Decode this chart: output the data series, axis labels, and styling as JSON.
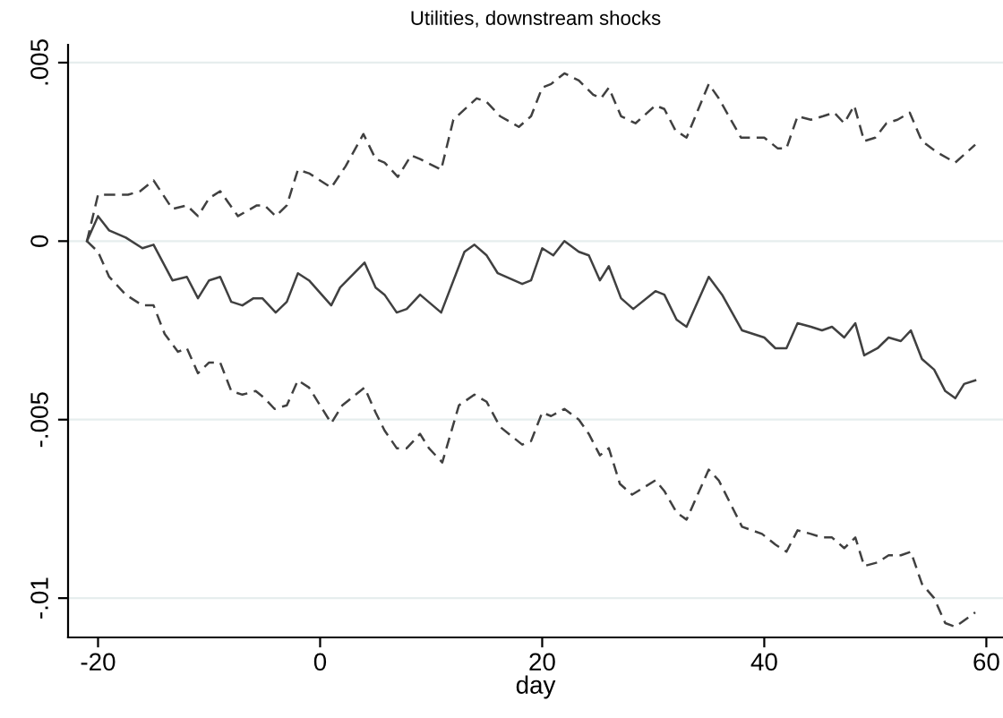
{
  "chart_data": {
    "type": "line",
    "title": "Utilities, downstream shocks",
    "xlabel": "day",
    "xlim": [
      -22.7,
      61.5
    ],
    "ylim": [
      -0.0111,
      0.0055
    ],
    "xticks": [
      -20,
      0,
      20,
      40,
      60
    ],
    "yticks": [
      {
        "value": 0.005,
        "label": ".005"
      },
      0,
      {
        "value": -0.005,
        "label": "-.005"
      },
      {
        "value": -0.01,
        "label": "-.01"
      }
    ],
    "grid": "y",
    "legend": false,
    "marker": "none",
    "series": [
      {
        "color": "#404040",
        "line_style": "dashed",
        "x": [
          -21,
          -20,
          -19,
          -17.3,
          -16.2,
          -15,
          -13.3,
          -12,
          -11,
          -10,
          -9,
          -7.4,
          -5.7,
          -5,
          -4,
          -3,
          -2,
          -1,
          1,
          2.3,
          3.9,
          5,
          5.8,
          7,
          8.2,
          9,
          10.9,
          12,
          14.1,
          15,
          16.2,
          17.9,
          19,
          20,
          20.8,
          22,
          23.3,
          24.6,
          25.3,
          26,
          27.1,
          28.4,
          30.2,
          31,
          32,
          33,
          35,
          35.9,
          37.9,
          40,
          41.2,
          42,
          43,
          44.2,
          45.3,
          46.3,
          47.2,
          48.1,
          49,
          50,
          51,
          52,
          53.1,
          54.2,
          55.5,
          57.2,
          59
        ],
        "values": [
          0,
          0.0013,
          0.0013,
          0.0013,
          0.0014,
          0.0017,
          0.0009,
          0.001,
          0.0007,
          0.0012,
          0.0014,
          0.0007,
          0.001,
          0.001,
          0.0007,
          0.001,
          0.002,
          0.0019,
          0.0015,
          0.0021,
          0.003,
          0.0023,
          0.0022,
          0.0018,
          0.0024,
          0.0023,
          0.002,
          0.0034,
          0.004,
          0.0039,
          0.0035,
          0.0032,
          0.0035,
          0.0043,
          0.0044,
          0.0047,
          0.0045,
          0.0041,
          0.004,
          0.0043,
          0.0035,
          0.0033,
          0.0038,
          0.0037,
          0.0031,
          0.0029,
          0.0044,
          0.004,
          0.0029,
          0.0029,
          0.0026,
          0.0026,
          0.0035,
          0.0034,
          0.0035,
          0.0036,
          0.0033,
          0.0038,
          0.0028,
          0.0029,
          0.0033,
          0.0034,
          0.0036,
          0.0028,
          0.0025,
          0.0022,
          0.0027
        ]
      },
      {
        "color": "#404040",
        "line_style": "solid",
        "x": [
          -21,
          -20,
          -19,
          -17.5,
          -16,
          -15,
          -13.3,
          -12,
          -11,
          -10,
          -9,
          -8,
          -7,
          -6,
          -5.2,
          -4,
          -3,
          -2,
          -1,
          1,
          1.8,
          4,
          5,
          5.8,
          6.9,
          7.8,
          9,
          10.9,
          13,
          13.9,
          15,
          16,
          18.2,
          19,
          20,
          21,
          22,
          23.3,
          24.2,
          25.2,
          26,
          27.1,
          28.2,
          30.2,
          31,
          32.1,
          33,
          35,
          36.2,
          38,
          40,
          41,
          42,
          43,
          44.2,
          45.2,
          46.1,
          47.2,
          48.2,
          49,
          50.2,
          51.2,
          52.3,
          53.2,
          54.2,
          55.3,
          56.3,
          57.2,
          58,
          59
        ],
        "values": [
          0,
          0.0007,
          0.0003,
          0.0001,
          -0.0002,
          -0.0001,
          -0.0011,
          -0.001,
          -0.0016,
          -0.0011,
          -0.001,
          -0.0017,
          -0.0018,
          -0.0016,
          -0.0016,
          -0.002,
          -0.0017,
          -0.0009,
          -0.0011,
          -0.0018,
          -0.0013,
          -0.0006,
          -0.0013,
          -0.0015,
          -0.002,
          -0.0019,
          -0.0015,
          -0.002,
          -0.0003,
          -0.0001,
          -0.0004,
          -0.0009,
          -0.0012,
          -0.0011,
          -0.0002,
          -0.0004,
          0,
          -0.0003,
          -0.0004,
          -0.0011,
          -0.0007,
          -0.0016,
          -0.0019,
          -0.0014,
          -0.0015,
          -0.0022,
          -0.0024,
          -0.001,
          -0.0015,
          -0.0025,
          -0.0027,
          -0.003,
          -0.003,
          -0.0023,
          -0.0024,
          -0.0025,
          -0.0024,
          -0.0027,
          -0.0023,
          -0.0032,
          -0.003,
          -0.0027,
          -0.0028,
          -0.0025,
          -0.0033,
          -0.0036,
          -0.0042,
          -0.0044,
          -0.004,
          -0.0039
        ]
      },
      {
        "color": "#404040",
        "line_style": "dashed",
        "x": [
          -21,
          -20,
          -19,
          -17.5,
          -16,
          -15,
          -14,
          -12.8,
          -12,
          -11,
          -10,
          -9,
          -8,
          -7,
          -5.8,
          -5,
          -4.1,
          -3,
          -2,
          -1,
          1,
          2,
          4,
          5,
          5.8,
          6.9,
          7.8,
          9,
          9.8,
          11,
          12.5,
          13.9,
          15,
          16.2,
          18.2,
          19,
          20,
          20.8,
          22,
          23.3,
          24.2,
          25.2,
          26,
          27,
          28.1,
          30.2,
          31,
          32.1,
          33,
          35,
          35.9,
          38,
          39.8,
          41,
          42,
          43,
          44.2,
          45.2,
          46.1,
          47.2,
          48.2,
          49,
          50.2,
          51.2,
          52.3,
          53.2,
          54.2,
          55.3,
          56.3,
          57.2,
          59
        ],
        "values": [
          0,
          -0.0003,
          -0.001,
          -0.0015,
          -0.0018,
          -0.0018,
          -0.0026,
          -0.0031,
          -0.003,
          -0.0037,
          -0.0034,
          -0.0034,
          -0.0042,
          -0.0043,
          -0.0042,
          -0.0044,
          -0.0047,
          -0.0046,
          -0.0039,
          -0.0041,
          -0.0051,
          -0.0046,
          -0.0041,
          -0.0048,
          -0.0053,
          -0.0058,
          -0.0058,
          -0.0054,
          -0.0058,
          -0.0062,
          -0.0046,
          -0.0043,
          -0.0045,
          -0.0052,
          -0.0057,
          -0.0056,
          -0.0048,
          -0.0049,
          -0.0047,
          -0.005,
          -0.0054,
          -0.006,
          -0.0058,
          -0.0068,
          -0.0071,
          -0.0067,
          -0.007,
          -0.0076,
          -0.0078,
          -0.0064,
          -0.0067,
          -0.008,
          -0.0082,
          -0.0085,
          -0.0087,
          -0.0081,
          -0.0082,
          -0.0083,
          -0.0083,
          -0.0086,
          -0.0083,
          -0.0091,
          -0.009,
          -0.0088,
          -0.0088,
          -0.0087,
          -0.0096,
          -0.01,
          -0.0107,
          -0.0108,
          -0.0104
        ]
      }
    ]
  }
}
